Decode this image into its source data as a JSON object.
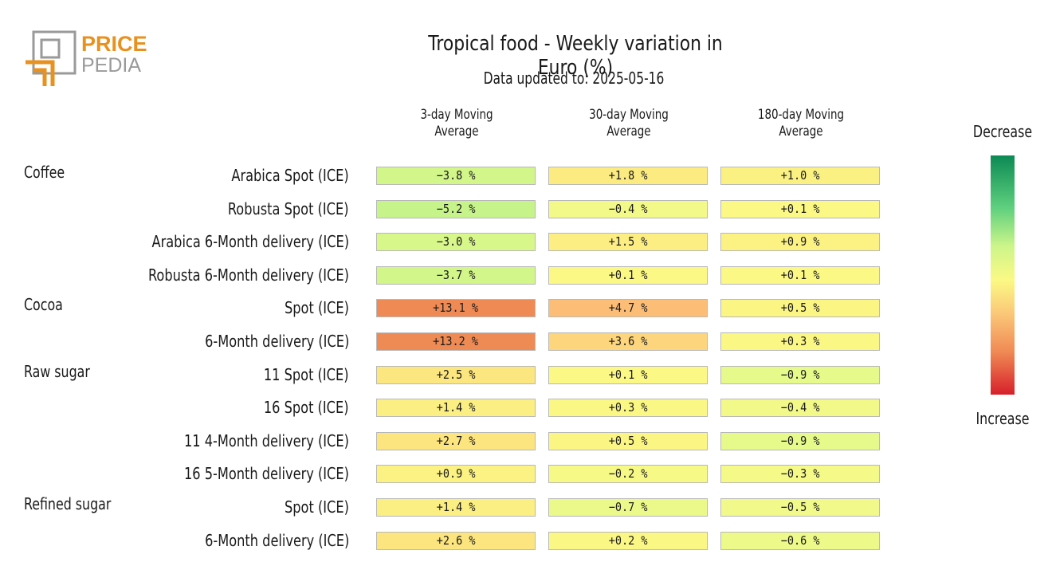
{
  "logo": {
    "line1": "PRICE",
    "line2": "PEDIA"
  },
  "header": {
    "title": "Tropical food - Weekly variation in Euro (%)",
    "subtitle": "Data updated to: 2025-05-16"
  },
  "legend": {
    "top": "Decrease",
    "bottom": "Increase"
  },
  "chart_data": {
    "type": "heatmap",
    "title": "Tropical food - Weekly variation in Euro (%)",
    "subtitle": "Data updated to: 2025-05-16",
    "columns": [
      {
        "line1": "3-day Moving",
        "line2": "Average"
      },
      {
        "line1": "30-day Moving",
        "line2": "Average"
      },
      {
        "line1": "180-day Moving",
        "line2": "Average"
      }
    ],
    "rows": [
      {
        "group": "Coffee",
        "label": "Arabica Spot (ICE)",
        "values": [
          -3.8,
          1.8,
          1.0
        ],
        "text": [
          "−3.8 %",
          "+1.8 %",
          "+1.0 %"
        ]
      },
      {
        "group": "",
        "label": "Robusta Spot (ICE)",
        "values": [
          -5.2,
          -0.4,
          0.1
        ],
        "text": [
          "−5.2 %",
          "−0.4 %",
          "+0.1 %"
        ]
      },
      {
        "group": "",
        "label": "Arabica 6-Month delivery (ICE)",
        "values": [
          -3.0,
          1.5,
          0.9
        ],
        "text": [
          "−3.0 %",
          "+1.5 %",
          "+0.9 %"
        ]
      },
      {
        "group": "",
        "label": "Robusta 6-Month delivery (ICE)",
        "values": [
          -3.7,
          0.1,
          0.1
        ],
        "text": [
          "−3.7 %",
          "+0.1 %",
          "+0.1 %"
        ]
      },
      {
        "group": "Cocoa",
        "label": "Spot (ICE)",
        "values": [
          13.1,
          4.7,
          0.5
        ],
        "text": [
          "+13.1 %",
          "+4.7 %",
          "+0.5 %"
        ]
      },
      {
        "group": "",
        "label": "6-Month delivery (ICE)",
        "values": [
          13.2,
          3.6,
          0.3
        ],
        "text": [
          "+13.2 %",
          "+3.6 %",
          "+0.3 %"
        ]
      },
      {
        "group": "Raw sugar",
        "label": "11 Spot (ICE)",
        "values": [
          2.5,
          0.1,
          -0.9
        ],
        "text": [
          "+2.5 %",
          "+0.1 %",
          "−0.9 %"
        ]
      },
      {
        "group": "",
        "label": "16 Spot (ICE)",
        "values": [
          1.4,
          0.3,
          -0.4
        ],
        "text": [
          "+1.4 %",
          "+0.3 %",
          "−0.4 %"
        ]
      },
      {
        "group": "",
        "label": "11 4-Month delivery (ICE)",
        "values": [
          2.7,
          0.5,
          -0.9
        ],
        "text": [
          "+2.7 %",
          "+0.5 %",
          "−0.9 %"
        ]
      },
      {
        "group": "",
        "label": "16 5-Month delivery (ICE)",
        "values": [
          0.9,
          -0.2,
          -0.3
        ],
        "text": [
          "+0.9 %",
          "−0.2 %",
          "−0.3 %"
        ]
      },
      {
        "group": "Refined sugar",
        "label": "Spot (ICE)",
        "values": [
          1.4,
          -0.7,
          -0.5
        ],
        "text": [
          "+1.4 %",
          "−0.7 %",
          "−0.5 %"
        ]
      },
      {
        "group": "",
        "label": "6-Month delivery (ICE)",
        "values": [
          2.6,
          0.2,
          -0.6
        ],
        "text": [
          "+2.6 %",
          "+0.2 %",
          "−0.6 %"
        ]
      }
    ],
    "color_scale": {
      "negative": "#0c8a54",
      "neutral": "#fbf985",
      "positive": "#d6202a"
    }
  }
}
